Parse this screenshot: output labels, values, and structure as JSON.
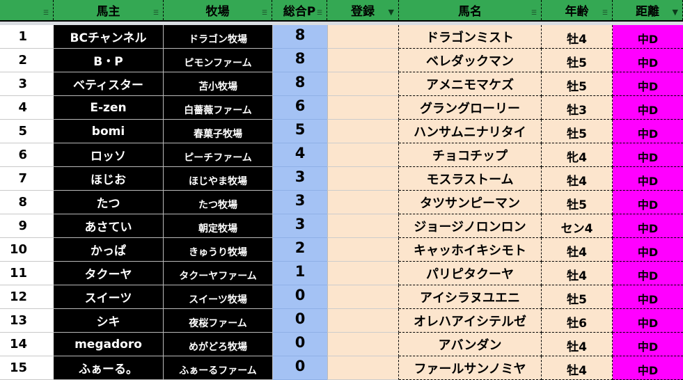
{
  "colors": {
    "header": "#34a853",
    "points": "#a4c2f4",
    "peach": "#fce5cd",
    "distance": "#ff00ff"
  },
  "headers": [
    {
      "label": "",
      "filter": "filter-icon"
    },
    {
      "label": "馬主",
      "filter": "filter-icon"
    },
    {
      "label": "牧場",
      "filter": "filter-icon"
    },
    {
      "label": "総合P",
      "filter": "filter-icon"
    },
    {
      "label": "登録",
      "filter": "filter-active-icon"
    },
    {
      "label": "馬名",
      "filter": "filter-icon"
    },
    {
      "label": "年齢",
      "filter": "filter-icon"
    },
    {
      "label": "距離",
      "filter": "filter-active-icon"
    }
  ],
  "rows": [
    {
      "no": "1",
      "owner": "BCチャンネル",
      "farm": "ドラゴン牧場",
      "points": "8",
      "reg": "",
      "horse": "ドラゴンミスト",
      "age": "牡4",
      "dist": "中D"
    },
    {
      "no": "2",
      "owner": "B・P",
      "farm": "ピモンファーム",
      "points": "8",
      "reg": "",
      "horse": "ベレダックマン",
      "age": "牡5",
      "dist": "中D"
    },
    {
      "no": "3",
      "owner": "ベティスター",
      "farm": "苫小牧場",
      "points": "8",
      "reg": "",
      "horse": "アメニモマケズ",
      "age": "牡5",
      "dist": "中D"
    },
    {
      "no": "4",
      "owner": "E-zen",
      "farm": "白薔薇ファーム",
      "points": "6",
      "reg": "",
      "horse": "グラングローリー",
      "age": "牡3",
      "dist": "中D"
    },
    {
      "no": "5",
      "owner": "bomi",
      "farm": "春菓子牧場",
      "points": "5",
      "reg": "",
      "horse": "ハンサムニナリタイ",
      "age": "牡5",
      "dist": "中D"
    },
    {
      "no": "6",
      "owner": "ロッソ",
      "farm": "ピーチファーム",
      "points": "4",
      "reg": "",
      "horse": "チョコチップ",
      "age": "牝4",
      "dist": "中D"
    },
    {
      "no": "7",
      "owner": "ほじお",
      "farm": "ほじやま牧場",
      "points": "3",
      "reg": "",
      "horse": "モスラストーム",
      "age": "牡4",
      "dist": "中D"
    },
    {
      "no": "8",
      "owner": "たつ",
      "farm": "たつ牧場",
      "points": "3",
      "reg": "",
      "horse": "タツサンピーマン",
      "age": "牡5",
      "dist": "中D"
    },
    {
      "no": "9",
      "owner": "あさてい",
      "farm": "朝定牧場",
      "points": "3",
      "reg": "",
      "horse": "ジョージノロンロン",
      "age": "セン4",
      "dist": "中D"
    },
    {
      "no": "10",
      "owner": "かっぱ",
      "farm": "きゅうり牧場",
      "points": "2",
      "reg": "",
      "horse": "キャッホイキシモト",
      "age": "牡4",
      "dist": "中D"
    },
    {
      "no": "11",
      "owner": "タクーヤ",
      "farm": "タクーヤファーム",
      "points": "1",
      "reg": "",
      "horse": "パリピタクーヤ",
      "age": "牡4",
      "dist": "中D"
    },
    {
      "no": "12",
      "owner": "スイーツ",
      "farm": "スイーツ牧場",
      "points": "0",
      "reg": "",
      "horse": "アイシラヌユエニ",
      "age": "牡5",
      "dist": "中D"
    },
    {
      "no": "13",
      "owner": "シキ",
      "farm": "夜桜ファーム",
      "points": "0",
      "reg": "",
      "horse": "オレハアイシテルゼ",
      "age": "牡6",
      "dist": "中D"
    },
    {
      "no": "14",
      "owner": "megadoro",
      "farm": "めがどろ牧場",
      "points": "0",
      "reg": "",
      "horse": "アバンダン",
      "age": "牡4",
      "dist": "中D"
    },
    {
      "no": "15",
      "owner": "ふぁーる。",
      "farm": "ふぁーるファーム",
      "points": "0",
      "reg": "",
      "horse": "ファールサンノミヤ",
      "age": "牡4",
      "dist": "中D"
    }
  ]
}
